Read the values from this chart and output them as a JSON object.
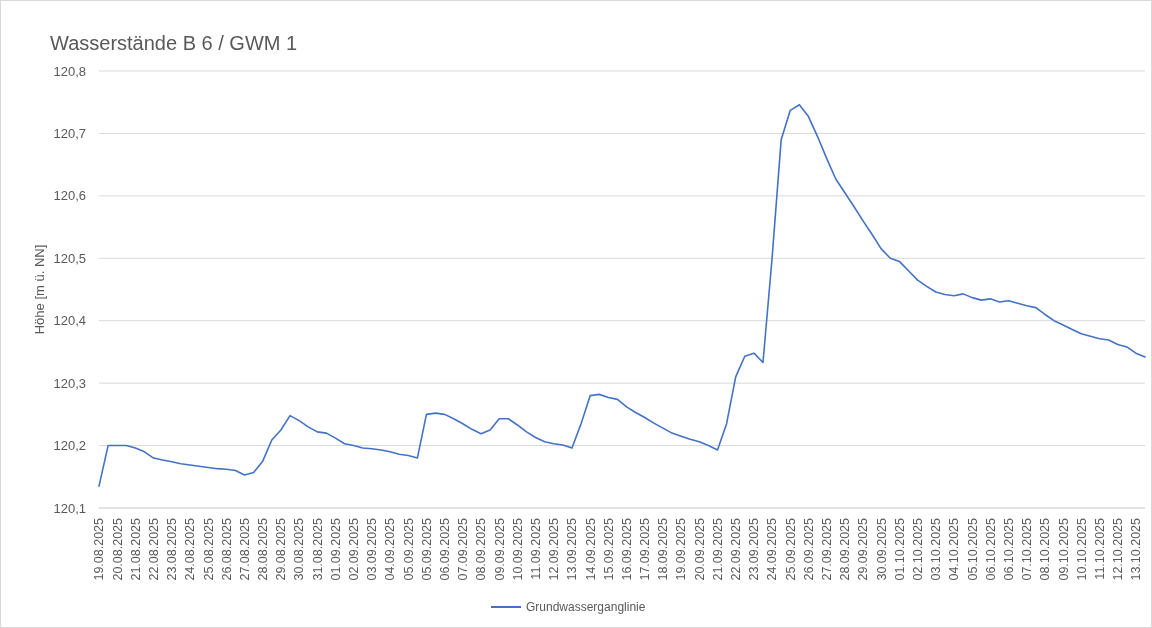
{
  "chart_data": {
    "type": "line",
    "title": "Wasserstände B 6 / GWM 1",
    "ylabel": "Höhe [m ü. NN]",
    "categories": [
      "19.08.2025",
      null,
      "20.08.2025",
      null,
      "21.08.2025",
      null,
      "22.08.2025",
      null,
      "23.08.2025",
      null,
      "24.08.2025",
      null,
      "25.08.2025",
      null,
      "26.08.2025",
      null,
      "27.08.2025",
      null,
      "28.08.2025",
      null,
      "29.08.2025",
      null,
      "30.08.2025",
      null,
      "31.08.2025",
      null,
      "01.09.2025",
      null,
      "02.09.2025",
      null,
      "03.09.2025",
      null,
      "04.09.2025",
      null,
      "05.09.2025",
      null,
      "05.09.2025",
      null,
      "06.09.2025",
      null,
      "07.09.2025",
      null,
      "08.09.2025",
      null,
      "09.09.2025",
      null,
      "10.09.2025",
      null,
      "11.09.2025",
      null,
      "12.09.2025",
      null,
      "13.09.2025",
      null,
      "14.09.2025",
      null,
      "15.09.2025",
      null,
      "16.09.2025",
      null,
      "17.09.2025",
      null,
      "18.09.2025",
      null,
      "19.09.2025",
      null,
      "20.09.2025",
      null,
      "21.09.2025",
      null,
      "22.09.2025",
      null,
      "23.09.2025",
      null,
      "24.09.2025",
      null,
      "25.09.2025",
      null,
      "26.09.2025",
      null,
      "27.09.2025",
      null,
      "28.09.2025",
      null,
      "29.09.2025",
      null,
      "30.09.2025",
      null,
      "01.10.2025",
      null,
      "02.10.2025",
      null,
      "03.10.2025",
      null,
      "04.10.2025",
      null,
      "05.10.2025",
      null,
      "06.10.2025",
      null,
      "06.10.2025",
      null,
      "07.10.2025",
      null,
      "08.10.2025",
      null,
      "09.10.2025",
      null,
      "10.10.2025",
      null,
      "11.10.2025",
      null,
      "12.10.2025",
      null,
      "13.10.2025",
      null
    ],
    "ylim": [
      120.1,
      120.8
    ],
    "yticks": [
      {
        "value": 120.1,
        "label": "120,1"
      },
      {
        "value": 120.2,
        "label": "120,2"
      },
      {
        "value": 120.3,
        "label": "120,3"
      },
      {
        "value": 120.4,
        "label": "120,4"
      },
      {
        "value": 120.5,
        "label": "120,5"
      },
      {
        "value": 120.6,
        "label": "120,6"
      },
      {
        "value": 120.7,
        "label": "120,7"
      },
      {
        "value": 120.8,
        "label": "120,8"
      }
    ],
    "grid": "y",
    "legend": "bottom",
    "series": [
      {
        "name": "Grundwasserganglinie",
        "color": "#4472c4",
        "values": [
          120.135,
          120.2,
          120.2,
          120.2,
          120.196,
          120.19,
          120.18,
          120.177,
          120.174,
          120.171,
          120.169,
          120.167,
          120.165,
          120.163,
          120.162,
          120.16,
          120.153,
          120.157,
          120.175,
          120.209,
          120.225,
          120.248,
          120.24,
          120.23,
          120.222,
          120.22,
          120.212,
          120.203,
          120.2,
          120.196,
          120.195,
          120.193,
          120.19,
          120.186,
          120.184,
          120.18,
          120.25,
          120.252,
          120.25,
          120.243,
          120.235,
          120.226,
          120.219,
          120.225,
          120.243,
          120.243,
          120.233,
          120.222,
          120.213,
          120.206,
          120.203,
          120.201,
          120.196,
          120.235,
          120.28,
          120.282,
          120.277,
          120.274,
          120.262,
          120.253,
          120.245,
          120.236,
          120.228,
          120.22,
          120.215,
          120.21,
          120.206,
          120.2,
          120.193,
          120.235,
          120.31,
          120.343,
          120.348,
          120.333,
          120.5,
          120.69,
          120.737,
          120.746,
          120.727,
          120.695,
          120.66,
          120.627,
          120.605,
          120.583,
          120.56,
          120.538,
          120.515,
          120.5,
          120.495,
          120.48,
          120.465,
          120.455,
          120.446,
          120.442,
          120.44,
          120.443,
          120.437,
          120.433,
          120.435,
          120.43,
          120.432,
          120.428,
          120.424,
          120.421,
          120.41,
          120.4,
          120.393,
          120.386,
          120.379,
          120.375,
          120.371,
          120.369,
          120.362,
          120.358,
          120.348,
          120.342
        ]
      }
    ]
  }
}
